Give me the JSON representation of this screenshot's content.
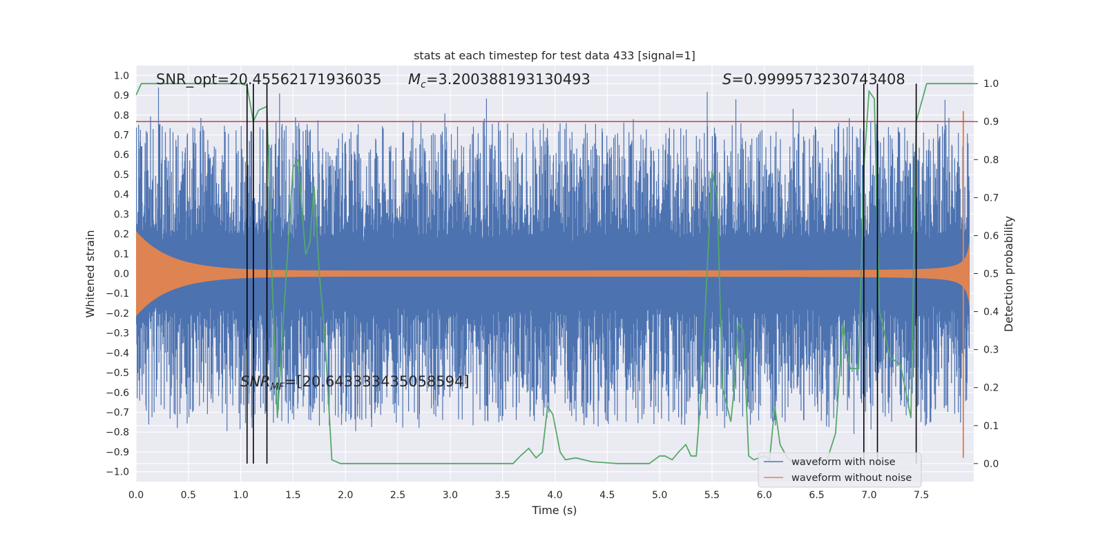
{
  "chart_data": {
    "type": "line",
    "title": "stats at each timestep for test data 433 [signal=1]",
    "xlabel": "Time (s)",
    "ylabel": "Whitened strain",
    "y2label": "Detection probability",
    "xlim": [
      0.0,
      8.0
    ],
    "ylim": [
      -1.05,
      1.05
    ],
    "y2lim": [
      -0.0475,
      1.0475
    ],
    "x_ticks": [
      "0.0",
      "0.5",
      "1.0",
      "1.5",
      "2.0",
      "2.5",
      "3.0",
      "3.5",
      "4.0",
      "4.5",
      "5.0",
      "5.5",
      "6.0",
      "6.5",
      "7.0",
      "7.5"
    ],
    "y_ticks": [
      "1.0",
      "0.9",
      "0.8",
      "0.7",
      "0.6",
      "0.5",
      "0.4",
      "0.3",
      "0.2",
      "0.1",
      "0.0",
      "−0.1",
      "−0.2",
      "−0.3",
      "−0.4",
      "−0.5",
      "−0.6",
      "−0.7",
      "−0.8",
      "−0.9",
      "−1.0"
    ],
    "y2_ticks": [
      "1.0",
      "0.9",
      "0.8",
      "0.7",
      "0.6",
      "0.5",
      "0.4",
      "0.3",
      "0.2",
      "0.1",
      "0.0"
    ],
    "grid": true,
    "legend_placement": "lower-right",
    "threshold": 0.9,
    "vlines": [
      1.06,
      1.12,
      1.25,
      6.95,
      7.08,
      7.45
    ],
    "series": [
      {
        "name": "waveform with noise",
        "color": "#4c72b0",
        "kind": "noise-envelope"
      },
      {
        "name": "waveform without noise",
        "color": "#dd8452",
        "kind": "chirp-envelope"
      },
      {
        "name": "",
        "color": "#55a868",
        "kind": "probability",
        "x": [
          0.0,
          0.05,
          0.2,
          0.5,
          0.8,
          1.0,
          1.06,
          1.12,
          1.17,
          1.25,
          1.29,
          1.35,
          1.4,
          1.5,
          1.55,
          1.58,
          1.62,
          1.66,
          1.7,
          1.75,
          1.8,
          1.87,
          1.95,
          2.2,
          2.4,
          2.6,
          3.0,
          3.3,
          3.6,
          3.67,
          3.75,
          3.82,
          3.88,
          3.93,
          3.98,
          4.05,
          4.1,
          4.2,
          4.35,
          4.6,
          4.9,
          5.0,
          5.05,
          5.12,
          5.18,
          5.25,
          5.3,
          5.35,
          5.4,
          5.5,
          5.55,
          5.6,
          5.68,
          5.72,
          5.75,
          5.8,
          5.85,
          5.9,
          6.0,
          6.05,
          6.1,
          6.15,
          6.22,
          6.28,
          6.35,
          6.4,
          6.5,
          6.6,
          6.68,
          6.75,
          6.82,
          6.9,
          6.95,
          7.0,
          7.05,
          7.1,
          7.2,
          7.3,
          7.4,
          7.45,
          7.55,
          8.0
        ],
        "y": [
          0.97,
          1.0,
          1.0,
          1.0,
          1.0,
          1.0,
          0.995,
          0.9,
          0.93,
          0.94,
          0.55,
          0.12,
          0.35,
          0.78,
          0.8,
          0.68,
          0.55,
          0.58,
          0.73,
          0.5,
          0.35,
          0.01,
          0.0,
          0.0,
          0.0,
          0.0,
          0.0,
          0.0,
          0.0,
          0.02,
          0.04,
          0.015,
          0.03,
          0.15,
          0.13,
          0.03,
          0.01,
          0.015,
          0.005,
          0.0,
          0.0,
          0.02,
          0.02,
          0.01,
          0.03,
          0.05,
          0.02,
          0.02,
          0.2,
          0.77,
          0.7,
          0.2,
          0.11,
          0.22,
          0.37,
          0.35,
          0.02,
          0.01,
          0.02,
          0.01,
          0.15,
          0.05,
          0.015,
          0.0,
          0.005,
          0.01,
          0.0,
          0.01,
          0.08,
          0.37,
          0.25,
          0.25,
          0.78,
          0.98,
          0.96,
          0.4,
          0.28,
          0.26,
          0.12,
          0.9,
          1.0,
          1.0
        ]
      }
    ],
    "annotations": {
      "snr_opt": "SNR_opt=20.45562171936035",
      "mc_symbol": "M",
      "mc_sub": "c",
      "mc_value": "=3.200388193130493",
      "s_symbol": "S",
      "s_value": "=0.9999573230743408",
      "snr_mf_symbol": "SNR",
      "snr_mf_sub": "MF",
      "snr_mf_value": "=[20.643333435058594]"
    }
  },
  "colors": {
    "background": "#eaeaf2",
    "grid": "#ffffff",
    "threshold": "#c44e52",
    "vline": "#000000"
  }
}
